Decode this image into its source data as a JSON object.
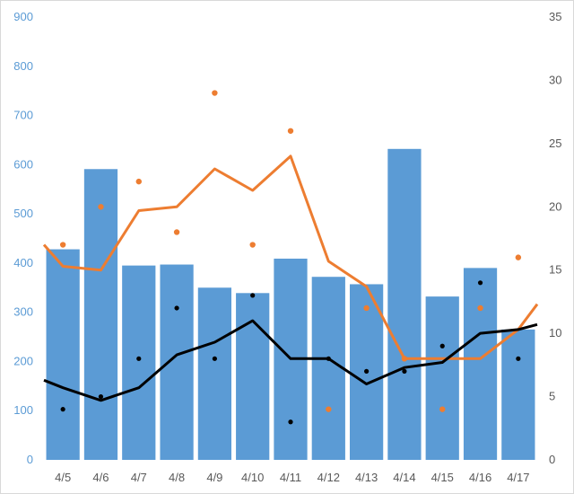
{
  "chart_data": {
    "type": "bar",
    "categories": [
      "4/5",
      "4/6",
      "4/7",
      "4/8",
      "4/9",
      "4/10",
      "4/11",
      "4/12",
      "4/13",
      "4/14",
      "4/15",
      "4/16",
      "4/17"
    ],
    "y_left": {
      "range": [
        0,
        900
      ],
      "ticks": [
        "0",
        "100",
        "200",
        "300",
        "400",
        "500",
        "600",
        "700",
        "800",
        "900"
      ]
    },
    "y_right": {
      "range": [
        0,
        35
      ],
      "ticks": [
        "0",
        "5",
        "10",
        "15",
        "20",
        "25",
        "30",
        "35"
      ]
    },
    "grid": false,
    "legend": "none",
    "series": [
      {
        "type": "bar",
        "axis": "left",
        "color": "#5b9bd5",
        "values": [
          428,
          591,
          395,
          397,
          350,
          339,
          409,
          372,
          357,
          632,
          332,
          390,
          265
        ]
      },
      {
        "type": "line",
        "axis": "right",
        "color": "#ed7d31",
        "extends_to_edges": true,
        "edge_values": [
          17.0,
          12.3
        ],
        "values": [
          15.3,
          15.0,
          19.7,
          20.0,
          23.0,
          21.3,
          24.0,
          15.7,
          13.7,
          8.0,
          8.0,
          8.0,
          10.3
        ]
      },
      {
        "type": "line",
        "axis": "right",
        "color": "#000000",
        "extends_to_edges": true,
        "edge_values": [
          6.3,
          10.7
        ],
        "values": [
          5.7,
          4.7,
          5.7,
          8.3,
          9.3,
          11.0,
          8.0,
          8.0,
          6.0,
          7.3,
          7.7,
          10.0,
          10.3
        ]
      },
      {
        "type": "scatter",
        "axis": "right",
        "color": "#ed7d31",
        "values": [
          17,
          20,
          22,
          18,
          29,
          17,
          26,
          4,
          12,
          8,
          4,
          12,
          16
        ]
      },
      {
        "type": "scatter",
        "axis": "right",
        "color": "#000000",
        "values": [
          4,
          5,
          8,
          12,
          8,
          13,
          3,
          8,
          7,
          7,
          9,
          14,
          8
        ]
      }
    ]
  }
}
